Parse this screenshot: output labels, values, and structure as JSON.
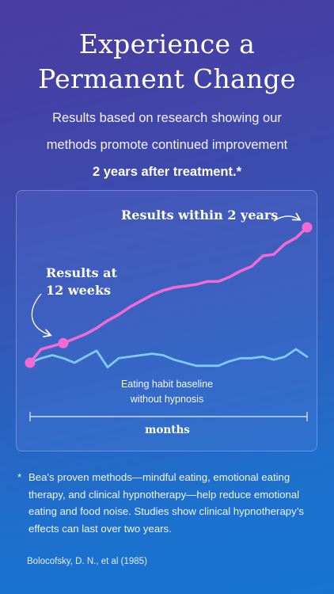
{
  "header": {
    "title_line1": "Experience a",
    "title_line2": "Permanent Change",
    "subtitle_line1": "Results based on research showing our",
    "subtitle_line2": "methods promote continued improvement",
    "subtitle_bold": "2 years after treatment.*"
  },
  "chart": {
    "annotation_two_years": "Results within 2 years",
    "annotation_12_weeks": "Results at 12 weeks",
    "baseline_label_line1": "Eating habit baseline",
    "baseline_label_line2": "without hypnosis",
    "axis_label": "months"
  },
  "chart_data": {
    "type": "line",
    "xlabel": "months",
    "ylabel": "",
    "series": [
      {
        "values": [
          0.0,
          0.09,
          0.11,
          0.13,
          0.16,
          0.19,
          0.23,
          0.28,
          0.32,
          0.37,
          0.41,
          0.45,
          0.48,
          0.5,
          0.51,
          0.52,
          0.54,
          0.54,
          0.57,
          0.61,
          0.64,
          0.71,
          0.72,
          0.79,
          0.83,
          0.9
        ],
        "color": "#f26bd5"
      },
      {
        "values": [
          0.0,
          0.03,
          0.05,
          0.03,
          0.0,
          0.04,
          0.08,
          -0.03,
          0.03,
          0.04,
          0.05,
          0.06,
          0.05,
          0.02,
          0.0,
          -0.02,
          -0.02,
          -0.02,
          0.01,
          0.03,
          0.03,
          0.04,
          0.02,
          0.04,
          0.09,
          0.04
        ],
        "color": "#7ecbf2"
      }
    ],
    "markers": [
      {
        "series": 0,
        "index": 0
      },
      {
        "series": 0,
        "index": 3
      },
      {
        "series": 0,
        "index": 25
      }
    ],
    "grid": false,
    "legend": "none"
  },
  "footnote": {
    "marker": "*",
    "text": "Bea's proven methods—mindful eating, emotional eating therapy, and clinical hypnotherapy—help reduce emotional eating and food noise. Studies show clinical hypnotherapy’s effects can last over two years."
  },
  "citation": "Bolocofsky, D. N., et al (1985)",
  "colors": {
    "pink_line": "#f26bd5",
    "blue_line": "#7ecbf2",
    "background_top": "#4b3aa0",
    "background_bottom": "#1576d2"
  }
}
